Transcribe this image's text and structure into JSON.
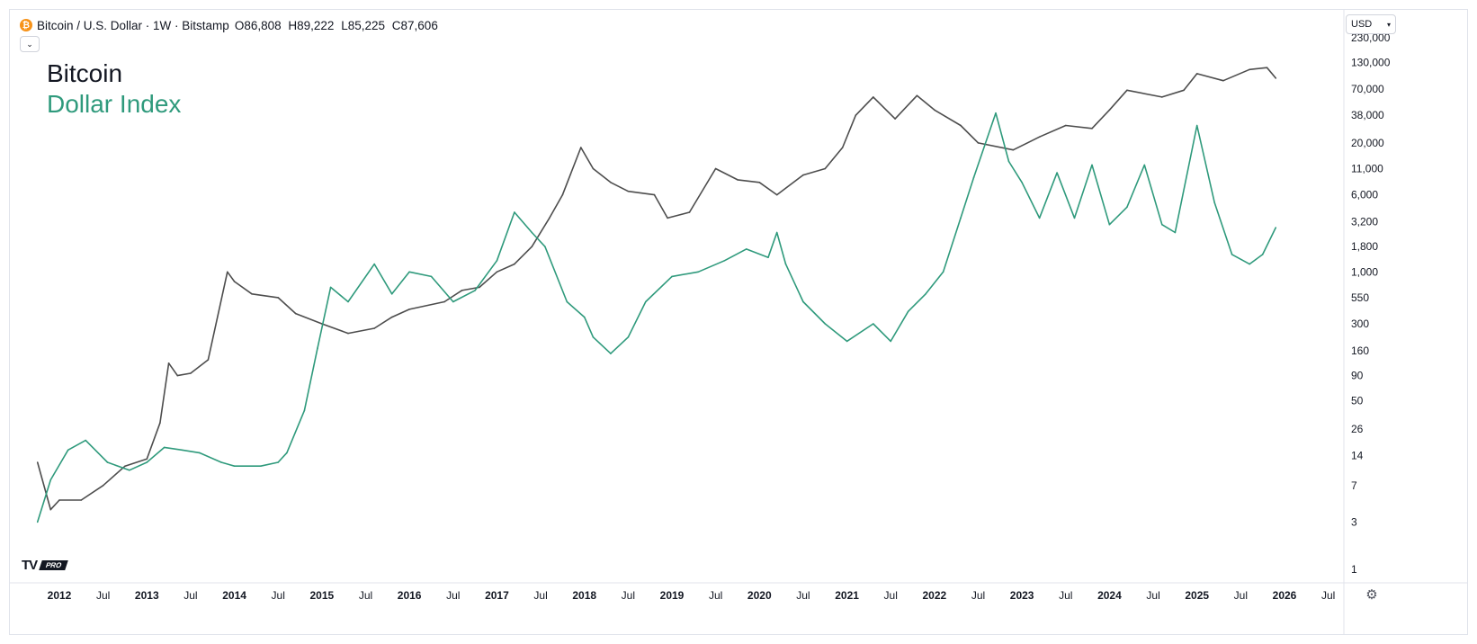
{
  "header": {
    "symbol_icon": "bitcoin-icon",
    "symbol": "Bitcoin / U.S. Dollar · 1W · Bitstamp",
    "ohlc": [
      {
        "k": "O",
        "v": "86,808"
      },
      {
        "k": "H",
        "v": "89,222"
      },
      {
        "k": "L",
        "v": "85,225"
      },
      {
        "k": "C",
        "v": "87,606"
      }
    ],
    "collapse_icon": "chevron-down-icon"
  },
  "currency_selector": {
    "label": "USD",
    "icon": "chevron-down-icon"
  },
  "logo": {
    "mark": "TV",
    "badge": "PRO"
  },
  "settings_icon": "gear-icon",
  "colors": {
    "bitcoin": "#4d4d4d",
    "dollar_index": "#2f9a7c",
    "axis": "#e0e3eb"
  },
  "chart_data": {
    "type": "line",
    "y_scale": "log",
    "legend_placement": "top-left",
    "series": [
      {
        "name": "Bitcoin",
        "x": [
          2011.75,
          2011.9,
          2012.0,
          2012.25,
          2012.5,
          2012.75,
          2013.0,
          2013.15,
          2013.25,
          2013.35,
          2013.5,
          2013.7,
          2013.92,
          2014.0,
          2014.2,
          2014.5,
          2014.7,
          2015.0,
          2015.3,
          2015.6,
          2015.8,
          2016.0,
          2016.4,
          2016.6,
          2016.8,
          2017.0,
          2017.2,
          2017.4,
          2017.6,
          2017.75,
          2017.96,
          2018.1,
          2018.3,
          2018.5,
          2018.8,
          2018.95,
          2019.2,
          2019.5,
          2019.75,
          2020.0,
          2020.2,
          2020.5,
          2020.75,
          2020.95,
          2021.1,
          2021.3,
          2021.55,
          2021.8,
          2022.0,
          2022.3,
          2022.5,
          2022.9,
          2023.2,
          2023.5,
          2023.8,
          2024.0,
          2024.2,
          2024.6,
          2024.85,
          2025.0,
          2025.3,
          2025.6,
          2025.8,
          2025.9
        ],
        "y": [
          12,
          4,
          5,
          5,
          7,
          11,
          13,
          30,
          120,
          90,
          95,
          130,
          1000,
          800,
          600,
          550,
          380,
          300,
          240,
          270,
          350,
          420,
          500,
          650,
          700,
          1000,
          1200,
          1800,
          3500,
          6000,
          18000,
          11000,
          8000,
          6500,
          6000,
          3500,
          4000,
          11000,
          8500,
          8000,
          6000,
          9500,
          11000,
          18000,
          38000,
          58000,
          35000,
          60000,
          43000,
          30000,
          20000,
          17000,
          23000,
          30000,
          28000,
          43000,
          68000,
          58000,
          68000,
          100000,
          85000,
          110000,
          115000,
          90000
        ]
      },
      {
        "name": "Dollar Index",
        "x": [
          2011.75,
          2011.9,
          2012.1,
          2012.3,
          2012.55,
          2012.8,
          2013.0,
          2013.2,
          2013.4,
          2013.6,
          2013.85,
          2014.0,
          2014.3,
          2014.5,
          2014.6,
          2014.8,
          2014.95,
          2015.1,
          2015.3,
          2015.6,
          2015.8,
          2016.0,
          2016.25,
          2016.5,
          2016.75,
          2017.0,
          2017.2,
          2017.4,
          2017.55,
          2017.8,
          2018.0,
          2018.1,
          2018.3,
          2018.5,
          2018.7,
          2019.0,
          2019.3,
          2019.6,
          2019.85,
          2020.1,
          2020.2,
          2020.3,
          2020.5,
          2020.75,
          2021.0,
          2021.3,
          2021.5,
          2021.7,
          2021.9,
          2022.1,
          2022.3,
          2022.45,
          2022.7,
          2022.85,
          2023.0,
          2023.2,
          2023.4,
          2023.6,
          2023.8,
          2024.0,
          2024.2,
          2024.4,
          2024.6,
          2024.75,
          2025.0,
          2025.2,
          2025.4,
          2025.6,
          2025.75,
          2025.9
        ],
        "y": [
          3,
          8,
          16,
          20,
          12,
          10,
          12,
          17,
          16,
          15,
          12,
          11,
          11,
          12,
          15,
          40,
          170,
          700,
          500,
          1200,
          600,
          1000,
          900,
          500,
          650,
          1300,
          4000,
          2500,
          1800,
          500,
          350,
          220,
          150,
          220,
          500,
          900,
          1000,
          1300,
          1700,
          1400,
          2500,
          1200,
          500,
          300,
          200,
          300,
          200,
          400,
          600,
          1000,
          3500,
          9000,
          40000,
          13000,
          8000,
          3500,
          10000,
          3500,
          12000,
          3000,
          4500,
          12000,
          3000,
          2500,
          30000,
          5000,
          1500,
          1200,
          1500,
          2800
        ]
      }
    ],
    "y_ticks": [
      "230,000",
      "130,000",
      "70,000",
      "38,000",
      "20,000",
      "11,000",
      "6,000",
      "3,200",
      "1,800",
      "1,000",
      "550",
      "300",
      "160",
      "90",
      "50",
      "26",
      "14",
      "7",
      "3",
      "1"
    ],
    "x_ticks": [
      "2012",
      "Jul",
      "2013",
      "Jul",
      "2014",
      "Jul",
      "2015",
      "Jul",
      "2016",
      "Jul",
      "2017",
      "Jul",
      "2018",
      "Jul",
      "2019",
      "Jul",
      "2020",
      "Jul",
      "2021",
      "Jul",
      "2022",
      "Jul",
      "2023",
      "Jul",
      "2024",
      "Jul",
      "2025",
      "Jul",
      "2026",
      "Jul"
    ],
    "grid": false
  }
}
